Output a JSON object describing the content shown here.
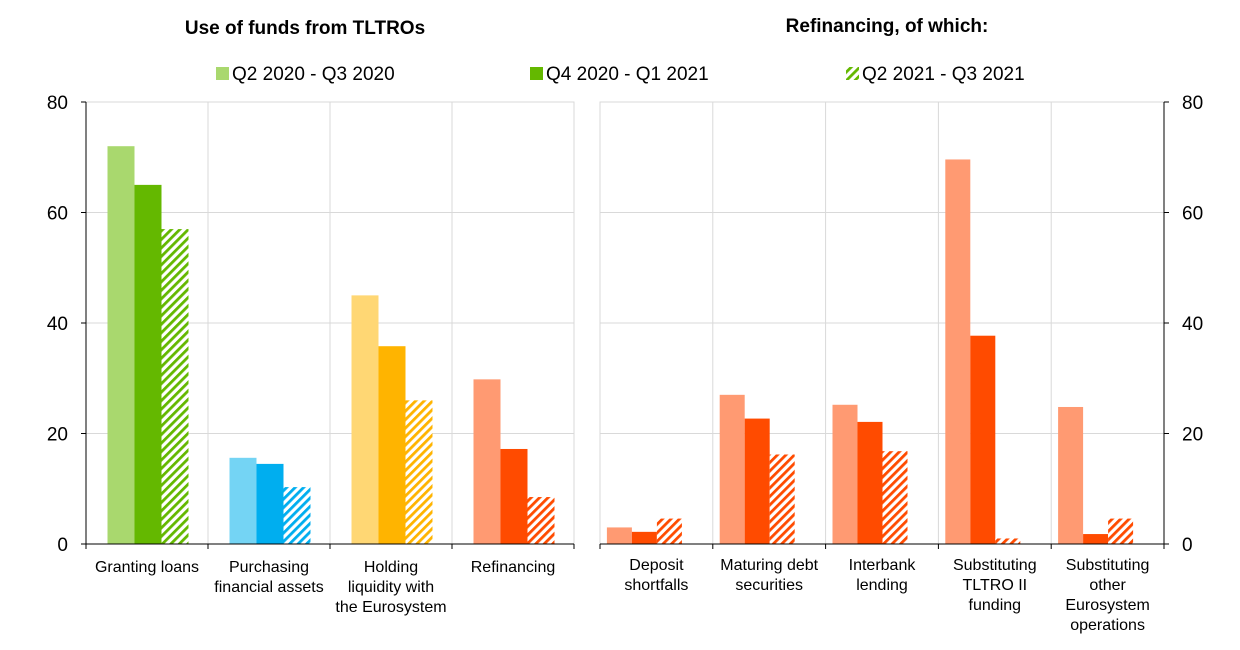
{
  "chart_data": [
    {
      "type": "bar",
      "title": "Use of funds from TLTROs",
      "categories": [
        [
          "Granting loans"
        ],
        [
          "Purchasing",
          "financial assets"
        ],
        [
          "Holding",
          "liquidity with",
          "the Eurosystem"
        ],
        [
          "Refinancing"
        ]
      ],
      "series": [
        {
          "name": "Q2 2020 - Q3 2020",
          "values": [
            72,
            15.6,
            45,
            29.8
          ]
        },
        {
          "name": "Q4 2020 - Q1 2021",
          "values": [
            65,
            14.5,
            35.8,
            17.2
          ]
        },
        {
          "name": "Q2 2021 - Q3 2021",
          "values": [
            57,
            10.3,
            26,
            8.5
          ]
        }
      ],
      "category_colors": [
        [
          "#a9d86e",
          "#64b800",
          "#64b800"
        ],
        [
          "#74d4f4",
          "#00aeef",
          "#00aeef"
        ],
        [
          "#ffd774",
          "#ffb400",
          "#ffb400"
        ],
        [
          "#ff9a72",
          "#ff4b00",
          "#ff4b00"
        ]
      ],
      "ylim": [
        0,
        80
      ],
      "yticks": [
        0,
        20,
        40,
        60,
        80
      ],
      "y_axis_side": "left",
      "grid": true
    },
    {
      "type": "bar",
      "title": "Refinancing, of which:",
      "categories": [
        [
          "Deposit",
          "shortfalls"
        ],
        [
          "Maturing debt",
          "securities"
        ],
        [
          "Interbank",
          "lending"
        ],
        [
          "Substituting",
          "TLTRO II",
          "funding"
        ],
        [
          "Substituting",
          "other",
          "Eurosystem",
          "operations"
        ]
      ],
      "series": [
        {
          "name": "Q2 2020 - Q3 2020",
          "values": [
            3,
            27,
            25.2,
            69.6,
            24.8
          ]
        },
        {
          "name": "Q4 2020 - Q1 2021",
          "values": [
            2.2,
            22.7,
            22.1,
            37.7,
            1.8
          ]
        },
        {
          "name": "Q2 2021 - Q3 2021",
          "values": [
            4.6,
            16.2,
            16.8,
            1,
            4.6
          ]
        }
      ],
      "series_colors": [
        "#ff9a72",
        "#ff4b00",
        "#ff4b00"
      ],
      "ylim": [
        0,
        80
      ],
      "yticks": [
        0,
        20,
        40,
        60,
        80
      ],
      "y_axis_side": "right",
      "grid": true
    }
  ],
  "legend": {
    "placement": "top-center",
    "items": [
      {
        "label": "Q2 2020 - Q3 2020",
        "swatch": "solid",
        "color": "#a9d86e"
      },
      {
        "label": "Q4 2020 - Q1 2021",
        "swatch": "solid",
        "color": "#64b800"
      },
      {
        "label": "Q2 2021 - Q3 2021",
        "swatch": "hatched",
        "color": "#64b800"
      }
    ]
  }
}
